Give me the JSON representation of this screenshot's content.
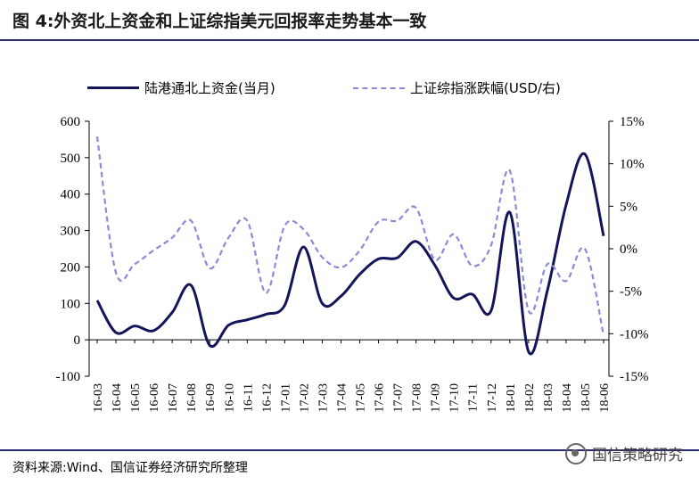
{
  "title": "图 4:外资北上资金和上证综指美元回报率走势基本一致",
  "source": "资料来源:Wind、国信证券经济研究所整理",
  "watermark": "国信策略研究",
  "colors": {
    "primary": "#14145a",
    "secondary": "#8a8ad6",
    "rule": "#2b2b6b"
  },
  "chart_data": {
    "type": "line",
    "categories": [
      "16-03",
      "16-04",
      "16-05",
      "16-06",
      "16-07",
      "16-08",
      "16-09",
      "16-10",
      "16-11",
      "16-12",
      "17-01",
      "17-02",
      "17-03",
      "17-04",
      "17-05",
      "17-06",
      "17-07",
      "17-08",
      "17-09",
      "17-10",
      "17-11",
      "17-12",
      "18-01",
      "18-02",
      "18-03",
      "18-04",
      "18-05",
      "18-06"
    ],
    "legend_position": "top",
    "grid": false,
    "left_axis": {
      "ylim": [
        -100,
        600
      ],
      "ticks": [
        "600",
        "500",
        "400",
        "300",
        "200",
        "100",
        "0",
        "-100"
      ]
    },
    "right_axis": {
      "ylim": [
        -15,
        15
      ],
      "ticks": [
        "15%",
        "10%",
        "5%",
        "0%",
        "-5%",
        "-10%",
        "-15%"
      ]
    },
    "series": [
      {
        "name": "陆港通北上资金(当月)",
        "axis": "left",
        "style": "solid",
        "values": [
          108,
          20,
          38,
          25,
          75,
          150,
          -15,
          40,
          55,
          70,
          95,
          255,
          100,
          120,
          180,
          222,
          225,
          270,
          205,
          115,
          125,
          80,
          350,
          -33,
          135,
          370,
          510,
          285
        ]
      },
      {
        "name": "上证综指涨跌幅(USD/右)",
        "axis": "right",
        "style": "dashed",
        "values": [
          13.2,
          -2.8,
          -1.8,
          -0.2,
          1.3,
          3.3,
          -2.3,
          1.3,
          3.3,
          -5.2,
          2.7,
          2.3,
          -1.0,
          -2.2,
          -0.2,
          3.2,
          3.3,
          4.8,
          -1.3,
          1.7,
          -2.0,
          0.4,
          9.2,
          -7.3,
          -1.8,
          -3.8,
          0.0,
          -10.2
        ]
      }
    ]
  }
}
